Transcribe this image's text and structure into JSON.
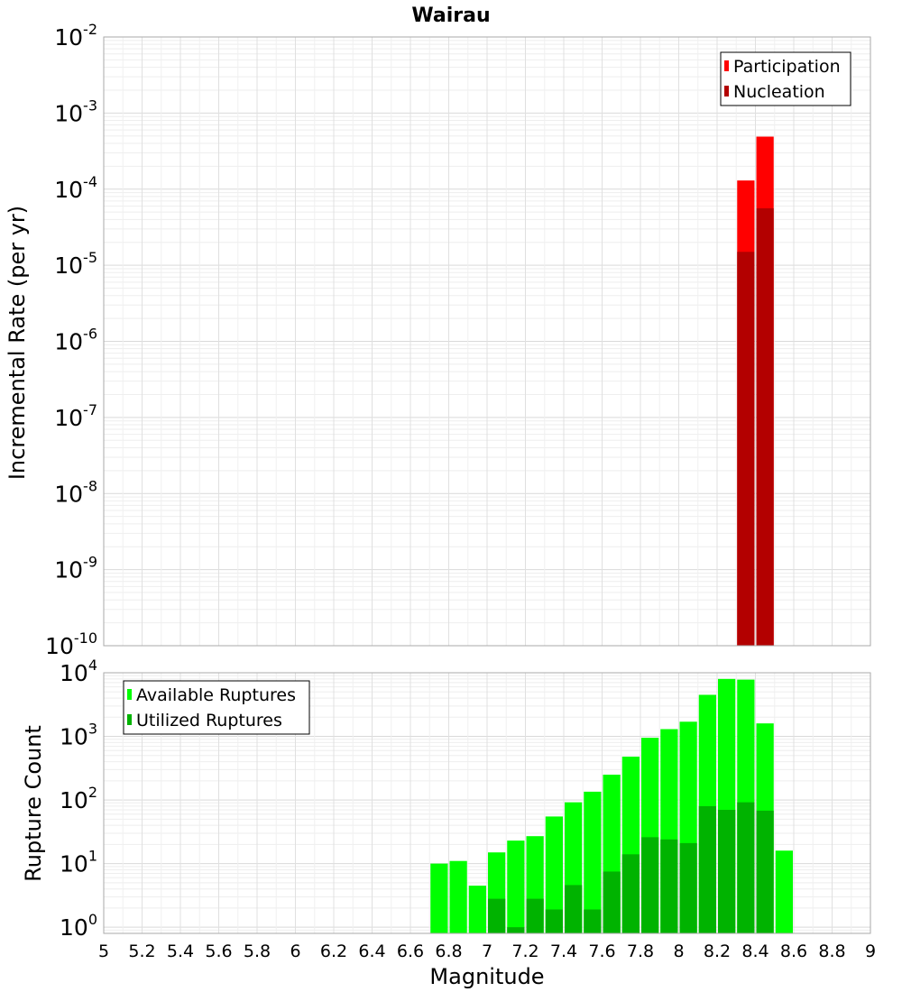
{
  "chart_data": [
    {
      "type": "bar",
      "title": "Wairau",
      "xlabel": "",
      "ylabel": "Incremental Rate (per yr)",
      "yscale": "log",
      "ylim": [
        1e-10,
        0.01
      ],
      "xlim": [
        5,
        9
      ],
      "bar_width": 0.1,
      "ytick_base": "10",
      "ytick_exponents": [
        "-10",
        "-9",
        "-8",
        "-7",
        "-6",
        "-5",
        "-4",
        "-3",
        "-2"
      ],
      "grid": true,
      "legend_position": "top-right",
      "series": [
        {
          "name": "Participation",
          "color": "#ff0000",
          "x": [
            8.35,
            8.45
          ],
          "values": [
            0.00013,
            0.00049
          ]
        },
        {
          "name": "Nucleation",
          "color": "#b30000",
          "x": [
            8.35,
            8.45
          ],
          "values": [
            1.5e-05,
            5.6e-05
          ]
        }
      ]
    },
    {
      "type": "bar",
      "title": "",
      "xlabel": "Magnitude",
      "ylabel": "Rupture Count",
      "yscale": "log",
      "ylim": [
        0.8,
        10000
      ],
      "xlim": [
        5,
        9
      ],
      "bar_width": 0.1,
      "ytick_base": "10",
      "ytick_exponents": [
        "0",
        "1",
        "2",
        "3",
        "4"
      ],
      "xticks": [
        "5",
        "5.2",
        "5.4",
        "5.6",
        "5.8",
        "6",
        "6.2",
        "6.4",
        "6.6",
        "6.8",
        "7",
        "7.2",
        "7.4",
        "7.6",
        "7.8",
        "8",
        "8.2",
        "8.4",
        "8.6",
        "8.8",
        "9"
      ],
      "grid": true,
      "legend_position": "top-left",
      "series": [
        {
          "name": "Available Ruptures",
          "color": "#00ff00",
          "x": [
            6.75,
            6.85,
            6.95,
            7.05,
            7.15,
            7.25,
            7.35,
            7.45,
            7.55,
            7.65,
            7.75,
            7.85,
            7.95,
            8.05,
            8.15,
            8.25,
            8.35,
            8.45,
            8.55
          ],
          "values": [
            10,
            11,
            4.5,
            15,
            23,
            27,
            55,
            92,
            135,
            250,
            480,
            950,
            1300,
            1700,
            4500,
            8000,
            7800,
            1600,
            16
          ]
        },
        {
          "name": "Utilized Ruptures",
          "color": "#00b300",
          "x": [
            7.05,
            7.15,
            7.25,
            7.35,
            7.45,
            7.55,
            7.65,
            7.75,
            7.85,
            7.95,
            8.05,
            8.15,
            8.25,
            8.35,
            8.45
          ],
          "values": [
            2.8,
            1,
            2.8,
            1.9,
            4.6,
            1.9,
            7.5,
            14,
            26,
            24,
            21,
            80,
            70,
            92,
            68
          ]
        }
      ]
    }
  ]
}
